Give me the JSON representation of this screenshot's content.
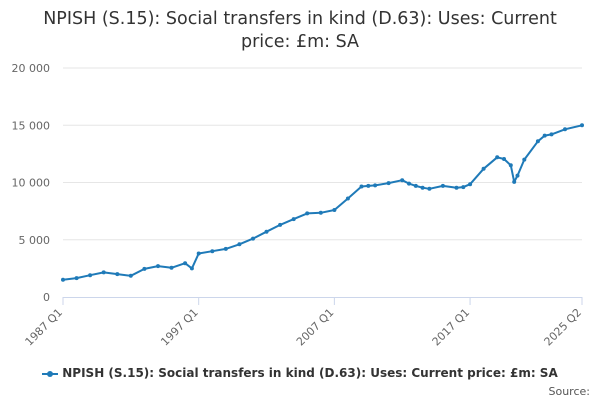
{
  "chart_data": {
    "type": "line",
    "title_line1": "NPISH (S.15): Social transfers in kind (D.63): Uses: Current",
    "title_line2": "price: £m: SA",
    "xlabel": "",
    "ylabel": "",
    "ylim": [
      0,
      20000
    ],
    "y_ticks": [
      0,
      5000,
      10000,
      15000,
      20000
    ],
    "y_tick_labels": [
      "0",
      "5 000",
      "10 000",
      "15 000",
      "20 000"
    ],
    "x_range": [
      "1987 Q1",
      "2025 Q2"
    ],
    "x_tick_labels": [
      "1987 Q1",
      "1997 Q1",
      "2007 Q1",
      "2017 Q1",
      "2025 Q2"
    ],
    "grid": true,
    "legend_position": "bottom",
    "series": [
      {
        "name": "NPISH (S.15): Social transfers in kind (D.63): Uses: Current price: £m: SA",
        "color": "#1f7ab8",
        "x": [
          "1987 Q1",
          "1988 Q1",
          "1989 Q1",
          "1990 Q1",
          "1991 Q1",
          "1992 Q1",
          "1993 Q1",
          "1994 Q1",
          "1995 Q1",
          "1996 Q1",
          "1996 Q3",
          "1997 Q1",
          "1998 Q1",
          "1999 Q1",
          "2000 Q1",
          "2001 Q1",
          "2002 Q1",
          "2003 Q1",
          "2004 Q1",
          "2005 Q1",
          "2006 Q1",
          "2007 Q1",
          "2008 Q1",
          "2009 Q1",
          "2009 Q3",
          "2010 Q1",
          "2011 Q1",
          "2012 Q1",
          "2012 Q3",
          "2013 Q1",
          "2013 Q3",
          "2014 Q1",
          "2015 Q1",
          "2016 Q1",
          "2016 Q3",
          "2017 Q1",
          "2018 Q1",
          "2019 Q1",
          "2019 Q3",
          "2020 Q1",
          "2020 Q2",
          "2020 Q3",
          "2021 Q1",
          "2022 Q1",
          "2022 Q3",
          "2023 Q1",
          "2024 Q1",
          "2025 Q2"
        ],
        "values": [
          1500,
          1650,
          1900,
          2150,
          2000,
          1850,
          2450,
          2700,
          2550,
          2950,
          2500,
          3800,
          4000,
          4200,
          4600,
          5100,
          5700,
          6300,
          6800,
          7300,
          7350,
          7600,
          8600,
          9650,
          9700,
          9750,
          9950,
          10200,
          9900,
          9700,
          9550,
          9450,
          9700,
          9550,
          9600,
          9850,
          11200,
          12200,
          12050,
          11500,
          10050,
          10600,
          12000,
          13600,
          14100,
          14200,
          14650,
          15000
        ]
      }
    ]
  },
  "credits": "Source:"
}
